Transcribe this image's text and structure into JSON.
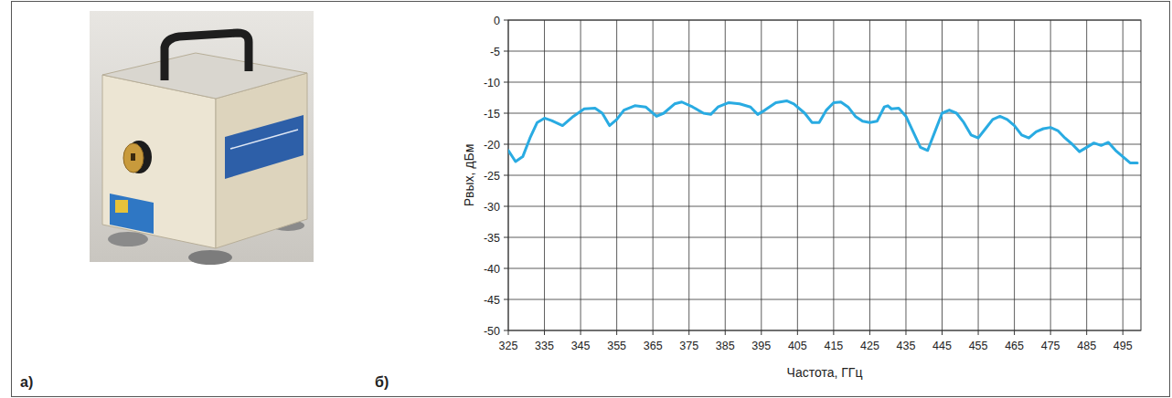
{
  "panel_labels": [
    "а)",
    "б)"
  ],
  "chart_data": {
    "type": "line",
    "x_label": "Частота, ГГц",
    "y_label": "Pвых, дБм",
    "color": "#29abe2",
    "grid": true,
    "xlim": [
      325,
      500
    ],
    "xticks": [
      325,
      335,
      345,
      355,
      365,
      375,
      385,
      395,
      405,
      415,
      425,
      435,
      445,
      455,
      465,
      475,
      485,
      495
    ],
    "ylim": [
      -50,
      0
    ],
    "yticks": [
      -50,
      -45,
      -40,
      -35,
      -30,
      -25,
      -20,
      -15,
      -10,
      -5,
      0
    ],
    "x": [
      325,
      327,
      329,
      331,
      333,
      335,
      337,
      340,
      343,
      346,
      349,
      351,
      353,
      355,
      357,
      360,
      363,
      366,
      368,
      371,
      373,
      376,
      379,
      381,
      383,
      386,
      389,
      392,
      394,
      396,
      399,
      402,
      404,
      407,
      409,
      411,
      413,
      415,
      417,
      419,
      421,
      423,
      425,
      427,
      429,
      430,
      431,
      433,
      435,
      437,
      439,
      441,
      443,
      445,
      447,
      449,
      451,
      453,
      455,
      457,
      459,
      461,
      463,
      465,
      467,
      469,
      471,
      473,
      475,
      477,
      479,
      481,
      483,
      485,
      487,
      489,
      491,
      493,
      495,
      497,
      499
    ],
    "values": [
      -21,
      -22.8,
      -22,
      -19,
      -16.5,
      -15.8,
      -16.2,
      -17,
      -15.5,
      -14.3,
      -14.2,
      -15,
      -17,
      -16,
      -14.5,
      -13.8,
      -14,
      -15.5,
      -15,
      -13.5,
      -13.2,
      -14,
      -15,
      -15.2,
      -14,
      -13.3,
      -13.5,
      -14,
      -15.2,
      -14.5,
      -13.3,
      -13,
      -13.5,
      -15,
      -16.5,
      -16.5,
      -14.5,
      -13.3,
      -13.2,
      -14,
      -15.5,
      -16.3,
      -16.5,
      -16.3,
      -14,
      -13.8,
      -14.3,
      -14.2,
      -15.5,
      -18,
      -20.5,
      -21,
      -18,
      -15,
      -14.5,
      -15,
      -16.5,
      -18.5,
      -19,
      -17.5,
      -16,
      -15.5,
      -16,
      -17,
      -18.5,
      -19,
      -18,
      -17.5,
      -17.3,
      -17.8,
      -19,
      -20,
      -21.2,
      -20.5,
      -19.8,
      -20.2,
      -19.7,
      -21,
      -22,
      -23,
      -23
    ]
  }
}
